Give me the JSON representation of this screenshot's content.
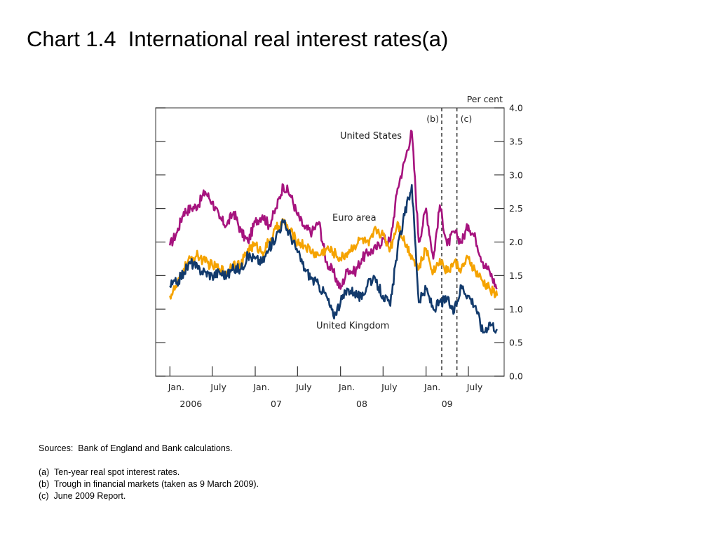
{
  "title": "Chart 1.4  International real interest rates(a)",
  "notes": {
    "sources": "Sources:  Bank of England and Bank calculations.",
    "a": "(a)  Ten-year real spot interest rates.",
    "b": "(b)  Trough in financial markets (taken as 9 March 2009).",
    "c": "(c)  June 2009 Report."
  },
  "chart_data": {
    "type": "line",
    "title": "",
    "ylabel": "Per cent",
    "ylim": [
      0,
      4
    ],
    "yticks": [
      "0.0",
      "0.5",
      "1.0",
      "1.5",
      "2.0",
      "2.5",
      "3.0",
      "3.5",
      "4.0"
    ],
    "xlim": [
      "2005-11-01",
      "2009-12-01"
    ],
    "xticks": [
      {
        "date": "2006-01-01",
        "label": "Jan."
      },
      {
        "date": "2006-07-01",
        "label": "July"
      },
      {
        "date": "2007-01-01",
        "label": "Jan."
      },
      {
        "date": "2007-07-01",
        "label": "July"
      },
      {
        "date": "2008-01-01",
        "label": "Jan."
      },
      {
        "date": "2008-07-01",
        "label": "July"
      },
      {
        "date": "2009-01-01",
        "label": "Jan."
      },
      {
        "date": "2009-07-01",
        "label": "July"
      }
    ],
    "year_labels": [
      {
        "date": "2006-04-01",
        "label": "2006"
      },
      {
        "date": "2007-04-01",
        "label": "07"
      },
      {
        "date": "2008-04-01",
        "label": "08"
      },
      {
        "date": "2009-04-01",
        "label": "09"
      }
    ],
    "reference_lines": [
      {
        "date": "2009-03-09",
        "label": "(b)"
      },
      {
        "date": "2009-05-13",
        "label": "(c)"
      }
    ],
    "grid": false,
    "colors": {
      "United States": "#a6137e",
      "Euro area": "#f5a300",
      "United Kingdom": "#123a6c"
    },
    "series": [
      {
        "name": "United States",
        "x": [
          "2006-01-01",
          "2006-02-01",
          "2006-03-01",
          "2006-04-01",
          "2006-05-01",
          "2006-06-01",
          "2006-07-01",
          "2006-08-01",
          "2006-09-01",
          "2006-10-01",
          "2006-11-01",
          "2006-12-01",
          "2007-01-01",
          "2007-02-01",
          "2007-03-01",
          "2007-04-01",
          "2007-05-01",
          "2007-06-01",
          "2007-07-01",
          "2007-08-01",
          "2007-09-01",
          "2007-10-01",
          "2007-11-01",
          "2007-12-01",
          "2008-01-01",
          "2008-02-01",
          "2008-03-01",
          "2008-04-01",
          "2008-05-01",
          "2008-06-01",
          "2008-07-01",
          "2008-08-01",
          "2008-09-01",
          "2008-10-01",
          "2008-11-01",
          "2008-12-01",
          "2009-01-01",
          "2009-02-01",
          "2009-03-01",
          "2009-04-01",
          "2009-05-01",
          "2009-06-01",
          "2009-07-01",
          "2009-08-01",
          "2009-09-01",
          "2009-10-01",
          "2009-11-01"
        ],
        "values": [
          1.95,
          2.15,
          2.45,
          2.5,
          2.55,
          2.75,
          2.6,
          2.35,
          2.25,
          2.45,
          2.15,
          2.0,
          2.3,
          2.4,
          2.25,
          2.5,
          2.85,
          2.7,
          2.4,
          2.2,
          2.15,
          2.3,
          1.7,
          1.55,
          1.3,
          1.6,
          1.55,
          1.75,
          1.85,
          1.9,
          2.05,
          2.0,
          2.8,
          3.2,
          3.65,
          2.0,
          2.5,
          1.75,
          2.55,
          1.95,
          2.15,
          2.0,
          2.25,
          2.05,
          1.7,
          1.55,
          1.3
        ]
      },
      {
        "name": "Euro area",
        "x": [
          "2006-01-01",
          "2006-02-01",
          "2006-03-01",
          "2006-04-01",
          "2006-05-01",
          "2006-06-01",
          "2006-07-01",
          "2006-08-01",
          "2006-09-01",
          "2006-10-01",
          "2006-11-01",
          "2006-12-01",
          "2007-01-01",
          "2007-02-01",
          "2007-03-01",
          "2007-04-01",
          "2007-05-01",
          "2007-06-01",
          "2007-07-01",
          "2007-08-01",
          "2007-09-01",
          "2007-10-01",
          "2007-11-01",
          "2007-12-01",
          "2008-01-01",
          "2008-02-01",
          "2008-03-01",
          "2008-04-01",
          "2008-05-01",
          "2008-06-01",
          "2008-07-01",
          "2008-08-01",
          "2008-09-01",
          "2008-10-01",
          "2008-11-01",
          "2008-12-01",
          "2009-01-01",
          "2009-02-01",
          "2009-03-01",
          "2009-04-01",
          "2009-05-01",
          "2009-06-01",
          "2009-07-01",
          "2009-08-01",
          "2009-09-01",
          "2009-10-01",
          "2009-11-01"
        ],
        "values": [
          1.2,
          1.35,
          1.6,
          1.75,
          1.8,
          1.7,
          1.65,
          1.6,
          1.55,
          1.7,
          1.65,
          1.9,
          1.95,
          1.85,
          2.0,
          2.2,
          2.3,
          2.15,
          2.0,
          1.95,
          1.85,
          1.8,
          1.9,
          1.85,
          1.75,
          1.85,
          1.95,
          2.05,
          1.95,
          2.2,
          2.1,
          1.9,
          2.3,
          2.0,
          1.8,
          1.6,
          1.9,
          1.55,
          1.75,
          1.55,
          1.7,
          1.6,
          1.75,
          1.55,
          1.4,
          1.3,
          1.2
        ]
      },
      {
        "name": "United Kingdom",
        "x": [
          "2006-01-01",
          "2006-02-01",
          "2006-03-01",
          "2006-04-01",
          "2006-05-01",
          "2006-06-01",
          "2006-07-01",
          "2006-08-01",
          "2006-09-01",
          "2006-10-01",
          "2006-11-01",
          "2006-12-01",
          "2007-01-01",
          "2007-02-01",
          "2007-03-01",
          "2007-04-01",
          "2007-05-01",
          "2007-06-01",
          "2007-07-01",
          "2007-08-01",
          "2007-09-01",
          "2007-10-01",
          "2007-11-01",
          "2007-12-01",
          "2008-01-01",
          "2008-02-01",
          "2008-03-01",
          "2008-04-01",
          "2008-05-01",
          "2008-06-01",
          "2008-07-01",
          "2008-08-01",
          "2008-09-01",
          "2008-10-01",
          "2008-11-01",
          "2008-12-01",
          "2009-01-01",
          "2009-02-01",
          "2009-03-01",
          "2009-04-01",
          "2009-05-01",
          "2009-06-01",
          "2009-07-01",
          "2009-08-01",
          "2009-09-01",
          "2009-10-01",
          "2009-11-01"
        ],
        "values": [
          1.35,
          1.4,
          1.55,
          1.7,
          1.6,
          1.55,
          1.5,
          1.55,
          1.5,
          1.6,
          1.6,
          1.8,
          1.75,
          1.7,
          1.9,
          2.1,
          2.3,
          2.1,
          1.85,
          1.6,
          1.45,
          1.35,
          1.2,
          0.9,
          1.1,
          1.3,
          1.25,
          1.15,
          1.45,
          1.4,
          1.2,
          1.05,
          1.9,
          2.4,
          2.85,
          1.1,
          1.3,
          1.0,
          1.1,
          1.15,
          0.95,
          1.35,
          1.2,
          1.05,
          0.65,
          0.8,
          0.7
        ]
      }
    ],
    "series_labels": [
      "United States",
      "Euro area",
      "United Kingdom"
    ]
  }
}
